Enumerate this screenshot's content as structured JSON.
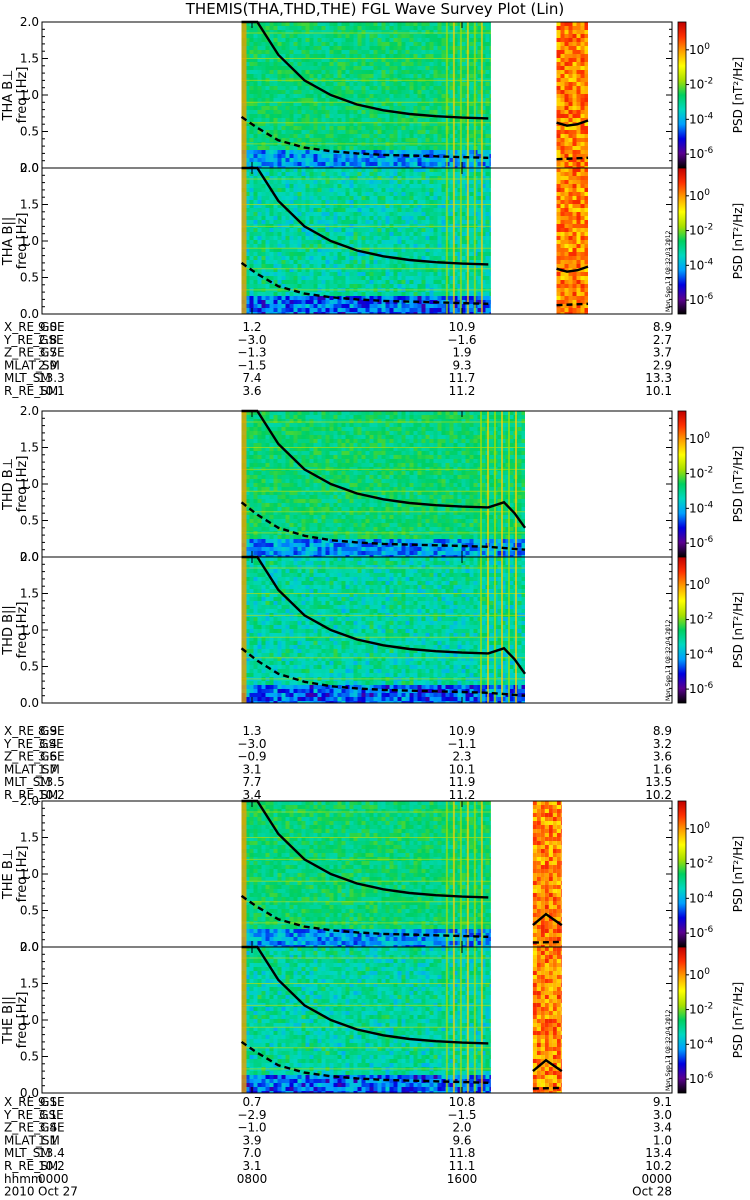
{
  "title": "THEMIS(THA,THD,THE) FGL Wave Survey Plot (Lin)",
  "colorbar": {
    "label": "PSD [nT²/Hz]",
    "ticks": [
      {
        "base": "10",
        "exp": "0",
        "value": 1
      },
      {
        "base": "10",
        "exp": "-2",
        "value": 0.01
      },
      {
        "base": "10",
        "exp": "-4",
        "value": 0.0001
      },
      {
        "base": "10",
        "exp": "-6",
        "value": 1e-06
      }
    ],
    "range_log10": [
      -6.8,
      1.6
    ],
    "stops": [
      "#000000",
      "#5a0090",
      "#0000e0",
      "#00a0ff",
      "#00d8c0",
      "#00d060",
      "#a8e000",
      "#ffff00",
      "#ffa000",
      "#ff3000",
      "#c00000"
    ]
  },
  "stamps": [
    "Mon Sep 17 08:32:03 2012",
    "Mon Sep 17 08:32:04 2012",
    "Mon Sep 17 08:32:04 2012"
  ],
  "chart_data": {
    "type": "heatmap",
    "title": "THEMIS(THA,THD,THE) FGL Wave Survey Plot (Lin)",
    "x_range_hours": [
      0,
      24
    ],
    "ylim": [
      0,
      2
    ],
    "y_ticks": [
      "0.0",
      "0.5",
      "1.0",
      "1.5",
      "2.0"
    ],
    "y_tick_values": [
      0,
      0.5,
      1.0,
      1.5,
      2.0
    ],
    "x_tick_labels": [
      "0000",
      "0800",
      "1600",
      "0000"
    ],
    "x_tick_hours": [
      0,
      8,
      16,
      24
    ],
    "date_labels": [
      "2010",
      "Oct 27",
      "Oct 28"
    ],
    "ephemeris_positions_hours": [
      0,
      8,
      16,
      24
    ],
    "probes": [
      {
        "name": "THA",
        "panels": [
          {
            "ylabel": "THA B⊥",
            "unit": "freq [Hz]"
          },
          {
            "ylabel": "THA B||",
            "unit": "freq [Hz]"
          }
        ],
        "segments_hours": [
          [
            7.6,
            17.1
          ],
          [
            19.6,
            20.8
          ]
        ],
        "gyro_solid": [
          [
            7.6,
            2.55
          ],
          [
            8.2,
            2.05
          ],
          [
            9,
            1.55
          ],
          [
            10,
            1.2
          ],
          [
            11,
            1.0
          ],
          [
            12,
            0.87
          ],
          [
            13,
            0.79
          ],
          [
            14,
            0.74
          ],
          [
            15,
            0.71
          ],
          [
            16,
            0.69
          ],
          [
            17,
            0.68
          ],
          [
            19.6,
            0.62
          ],
          [
            20.0,
            0.58
          ],
          [
            20.4,
            0.6
          ],
          [
            20.8,
            0.65
          ]
        ],
        "gyro_dashed": [
          [
            7.6,
            0.7
          ],
          [
            8.2,
            0.55
          ],
          [
            9,
            0.38
          ],
          [
            10,
            0.28
          ],
          [
            11,
            0.23
          ],
          [
            12,
            0.2
          ],
          [
            13,
            0.18
          ],
          [
            14,
            0.17
          ],
          [
            15,
            0.16
          ],
          [
            16,
            0.15
          ],
          [
            17,
            0.14
          ],
          [
            19.6,
            0.12
          ],
          [
            20.8,
            0.14
          ]
        ],
        "ephemeris": [
          {
            "label": "X_RE_GSE",
            "values": [
              "9.0",
              "1.2",
              "10.9",
              "8.9"
            ]
          },
          {
            "label": "Y_RE_GSE",
            "values": [
              "2.8",
              "−3.0",
              "−1.6",
              "2.7"
            ]
          },
          {
            "label": "Z_RE_GSE",
            "values": [
              "3.7",
              "−1.3",
              "1.9",
              "3.7"
            ]
          },
          {
            "label": "MLAT_SM",
            "values": [
              "2.9",
              "−1.5",
              "9.3",
              "2.9"
            ]
          },
          {
            "label": "MLT_SM",
            "values": [
              "13.3",
              "7.4",
              "11.7",
              "13.3"
            ]
          },
          {
            "label": "R_RE_SM",
            "values": [
              "10.1",
              "3.6",
              "11.2",
              "10.1"
            ]
          }
        ]
      },
      {
        "name": "THD",
        "panels": [
          {
            "ylabel": "THD B⊥",
            "unit": "freq [Hz]"
          },
          {
            "ylabel": "THD B||",
            "unit": "freq [Hz]"
          }
        ],
        "segments_hours": [
          [
            7.6,
            18.4
          ]
        ],
        "gyro_solid": [
          [
            7.6,
            2.55
          ],
          [
            8.2,
            2.05
          ],
          [
            9,
            1.55
          ],
          [
            10,
            1.2
          ],
          [
            11,
            1.0
          ],
          [
            12,
            0.87
          ],
          [
            13,
            0.79
          ],
          [
            14,
            0.74
          ],
          [
            15,
            0.71
          ],
          [
            16,
            0.69
          ],
          [
            17,
            0.68
          ],
          [
            17.6,
            0.75
          ],
          [
            18.0,
            0.6
          ],
          [
            18.4,
            0.4
          ]
        ],
        "gyro_dashed": [
          [
            7.6,
            0.75
          ],
          [
            8.2,
            0.58
          ],
          [
            9,
            0.4
          ],
          [
            10,
            0.29
          ],
          [
            11,
            0.23
          ],
          [
            12,
            0.2
          ],
          [
            13,
            0.18
          ],
          [
            14,
            0.17
          ],
          [
            15,
            0.16
          ],
          [
            16,
            0.15
          ],
          [
            17,
            0.14
          ],
          [
            18.4,
            0.1
          ]
        ],
        "ephemeris": [
          {
            "label": "X_RE_GSE",
            "values": [
              "8.9",
              "1.3",
              "10.9",
              "8.9"
            ]
          },
          {
            "label": "Y_RE_GSE",
            "values": [
              "3.4",
              "−3.0",
              "−1.1",
              "3.2"
            ]
          },
          {
            "label": "Z_RE_GSE",
            "values": [
              "3.6",
              "−0.9",
              "2.3",
              "3.6"
            ]
          },
          {
            "label": "MLAT_SM",
            "values": [
              "1.7",
              "3.1",
              "10.1",
              "1.6"
            ]
          },
          {
            "label": "MLT_SM",
            "values": [
              "13.5",
              "7.7",
              "11.9",
              "13.5"
            ]
          },
          {
            "label": "R_RE_SM",
            "values": [
              "10.2",
              "3.4",
              "11.2",
              "10.2"
            ]
          }
        ]
      },
      {
        "name": "THE",
        "panels": [
          {
            "ylabel": "THE B⊥",
            "unit": "freq [Hz]"
          },
          {
            "ylabel": "THE B||",
            "unit": "freq [Hz]"
          }
        ],
        "segments_hours": [
          [
            7.6,
            17.1
          ],
          [
            18.7,
            19.8
          ]
        ],
        "gyro_solid": [
          [
            7.6,
            2.55
          ],
          [
            8.2,
            2.05
          ],
          [
            9,
            1.55
          ],
          [
            10,
            1.2
          ],
          [
            11,
            1.0
          ],
          [
            12,
            0.87
          ],
          [
            13,
            0.79
          ],
          [
            14,
            0.74
          ],
          [
            15,
            0.71
          ],
          [
            16,
            0.69
          ],
          [
            17,
            0.68
          ],
          [
            18.7,
            0.3
          ],
          [
            19.2,
            0.45
          ],
          [
            19.8,
            0.3
          ]
        ],
        "gyro_dashed": [
          [
            7.6,
            0.7
          ],
          [
            8.2,
            0.55
          ],
          [
            9,
            0.38
          ],
          [
            10,
            0.28
          ],
          [
            11,
            0.23
          ],
          [
            12,
            0.2
          ],
          [
            13,
            0.18
          ],
          [
            14,
            0.17
          ],
          [
            15,
            0.16
          ],
          [
            16,
            0.15
          ],
          [
            17,
            0.14
          ],
          [
            18.7,
            0.06
          ],
          [
            19.8,
            0.07
          ]
        ],
        "ephemeris": [
          {
            "label": "X_RE_GSE",
            "values": [
              "9.1",
              "0.7",
              "10.8",
              "9.1"
            ]
          },
          {
            "label": "Y_RE_GSE",
            "values": [
              "3.1",
              "−2.9",
              "−1.5",
              "3.0"
            ]
          },
          {
            "label": "Z_RE_GSE",
            "values": [
              "3.4",
              "−1.0",
              "2.0",
              "3.4"
            ]
          },
          {
            "label": "MLAT_SM",
            "values": [
              "1.1",
              "3.9",
              "9.6",
              "1.0"
            ]
          },
          {
            "label": "MLT_SM",
            "values": [
              "13.4",
              "7.0",
              "11.8",
              "13.4"
            ]
          },
          {
            "label": "R_RE_SM",
            "values": [
              "10.2",
              "3.1",
              "11.1",
              "10.2"
            ]
          }
        ]
      }
    ],
    "time_row_label": "hhmm"
  }
}
